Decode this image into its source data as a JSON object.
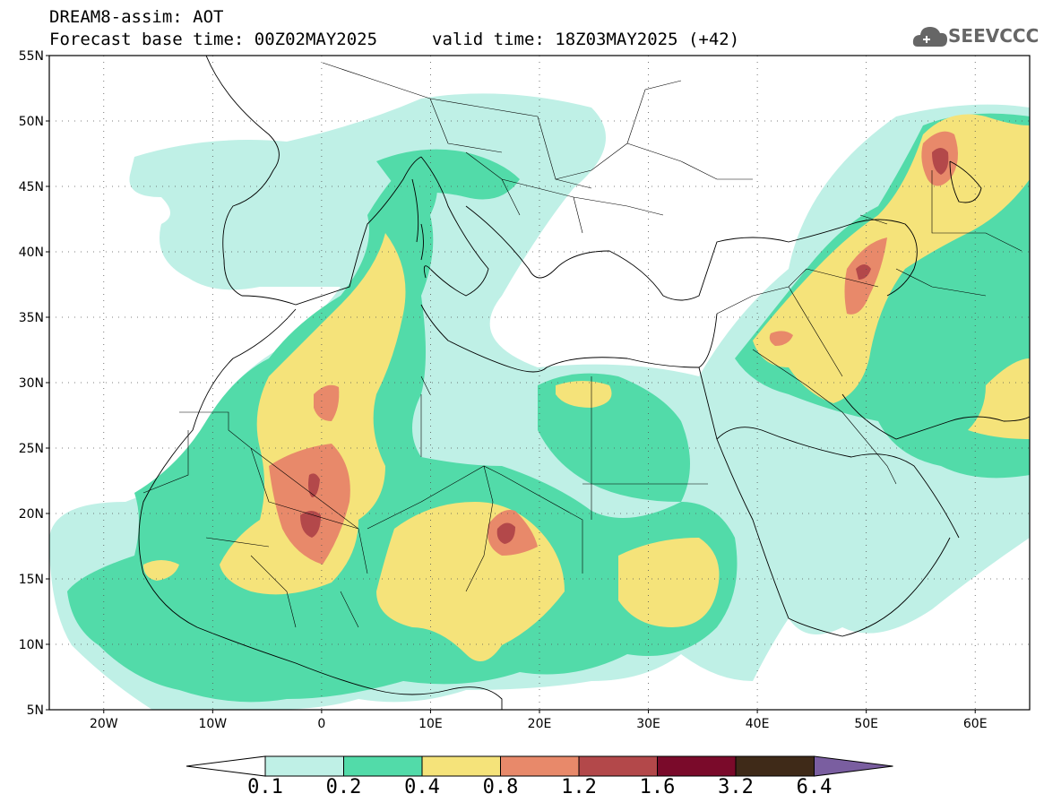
{
  "header": {
    "model_label": "DREAM8-assim: AOT",
    "base_time": "Forecast base time: 00Z02MAY2025",
    "valid_time": "valid time: 18Z03MAY2025 (+42)",
    "logo_text": "SEEVCCC"
  },
  "map": {
    "lon_range": [
      -25,
      65
    ],
    "lat_range": [
      5,
      55
    ],
    "lat_ticks": [
      "55N",
      "50N",
      "45N",
      "40N",
      "35N",
      "30N",
      "25N",
      "20N",
      "15N",
      "10N",
      "5N"
    ],
    "lon_ticks": [
      "20W",
      "10W",
      "0",
      "10E",
      "20E",
      "30E",
      "40E",
      "50E",
      "60E"
    ],
    "grid": "dotted"
  },
  "colorbar": {
    "labels": [
      "0.1",
      "0.2",
      "0.4",
      "0.8",
      "1.2",
      "1.6",
      "3.2",
      "6.4"
    ],
    "colors": [
      "#ffffff",
      "#bff0e6",
      "#52dba9",
      "#f5e37a",
      "#e8896a",
      "#b3484a",
      "#7a0a2a",
      "#3f2a18",
      "#7a5ea0"
    ]
  }
}
